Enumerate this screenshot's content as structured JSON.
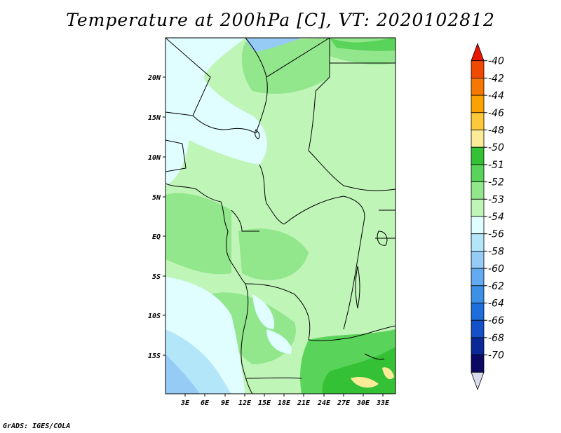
{
  "title": "Temperature at 200hPa [C], VT: 2020102812",
  "credit": "GrADS: IGES/COLA",
  "map": {
    "lat_ticks": [
      "20N",
      "15N",
      "10N",
      "5N",
      "EQ",
      "5S",
      "10S",
      "15S"
    ],
    "lon_ticks": [
      "3E",
      "6E",
      "9E",
      "12E",
      "15E",
      "18E",
      "21E",
      "24E",
      "27E",
      "30E",
      "33E"
    ]
  },
  "colorbar": {
    "labels": [
      "-40",
      "-42",
      "-44",
      "-46",
      "-48",
      "-50",
      "-51",
      "-52",
      "-53",
      "-54",
      "-56",
      "-58",
      "-60",
      "-62",
      "-64",
      "-66",
      "-68",
      "-70"
    ],
    "colors": [
      "#e81800",
      "#f04a00",
      "#f57800",
      "#faa300",
      "#fcc93a",
      "#fcec9a",
      "#35c135",
      "#5ad35a",
      "#92e68c",
      "#bff5b7",
      "#e0fdff",
      "#b4e6fa",
      "#96cbf5",
      "#64aaf0",
      "#3c90e6",
      "#1e6edc",
      "#1450c8",
      "#0a2896",
      "#0a0a64",
      "#dcdcf0"
    ]
  }
}
